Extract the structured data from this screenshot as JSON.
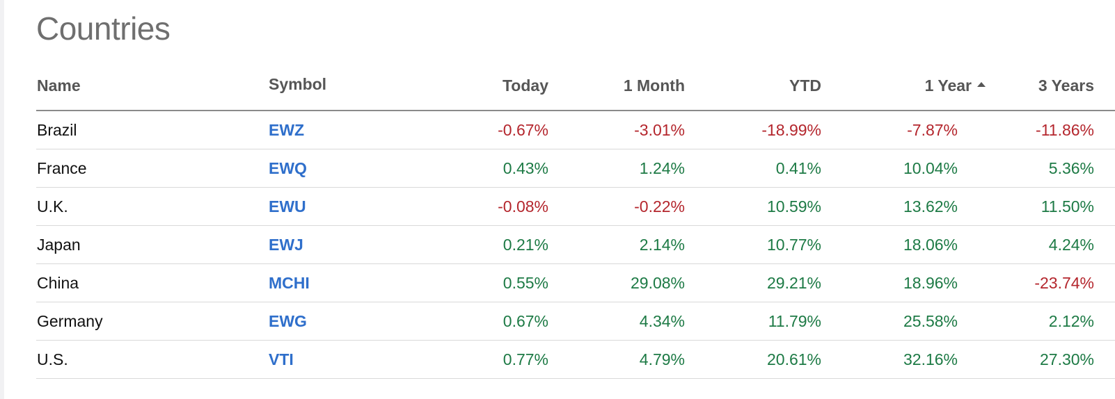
{
  "title": "Countries",
  "columns": {
    "name": "Name",
    "symbol": "Symbol",
    "today": "Today",
    "month": "1 Month",
    "ytd": "YTD",
    "year": "1 Year",
    "three_years": "3 Years"
  },
  "sort": {
    "column": "1 Year",
    "direction": "ascending",
    "icon": "sort-ascending-icon"
  },
  "colors": {
    "negative": "#b4262d",
    "positive": "#1d7a45",
    "symbol_link": "#2f6fcb"
  },
  "rows": [
    {
      "name": "Brazil",
      "symbol": "EWZ",
      "today": "-0.67%",
      "month": "-3.01%",
      "ytd": "-18.99%",
      "year": "-7.87%",
      "three_years": "-11.86%"
    },
    {
      "name": "France",
      "symbol": "EWQ",
      "today": "0.43%",
      "month": "1.24%",
      "ytd": "0.41%",
      "year": "10.04%",
      "three_years": "5.36%"
    },
    {
      "name": "U.K.",
      "symbol": "EWU",
      "today": "-0.08%",
      "month": "-0.22%",
      "ytd": "10.59%",
      "year": "13.62%",
      "three_years": "11.50%"
    },
    {
      "name": "Japan",
      "symbol": "EWJ",
      "today": "0.21%",
      "month": "2.14%",
      "ytd": "10.77%",
      "year": "18.06%",
      "three_years": "4.24%"
    },
    {
      "name": "China",
      "symbol": "MCHI",
      "today": "0.55%",
      "month": "29.08%",
      "ytd": "29.21%",
      "year": "18.96%",
      "three_years": "-23.74%"
    },
    {
      "name": "Germany",
      "symbol": "EWG",
      "today": "0.67%",
      "month": "4.34%",
      "ytd": "11.79%",
      "year": "25.58%",
      "three_years": "2.12%"
    },
    {
      "name": "U.S.",
      "symbol": "VTI",
      "today": "0.77%",
      "month": "4.79%",
      "ytd": "20.61%",
      "year": "32.16%",
      "three_years": "27.30%"
    }
  ]
}
